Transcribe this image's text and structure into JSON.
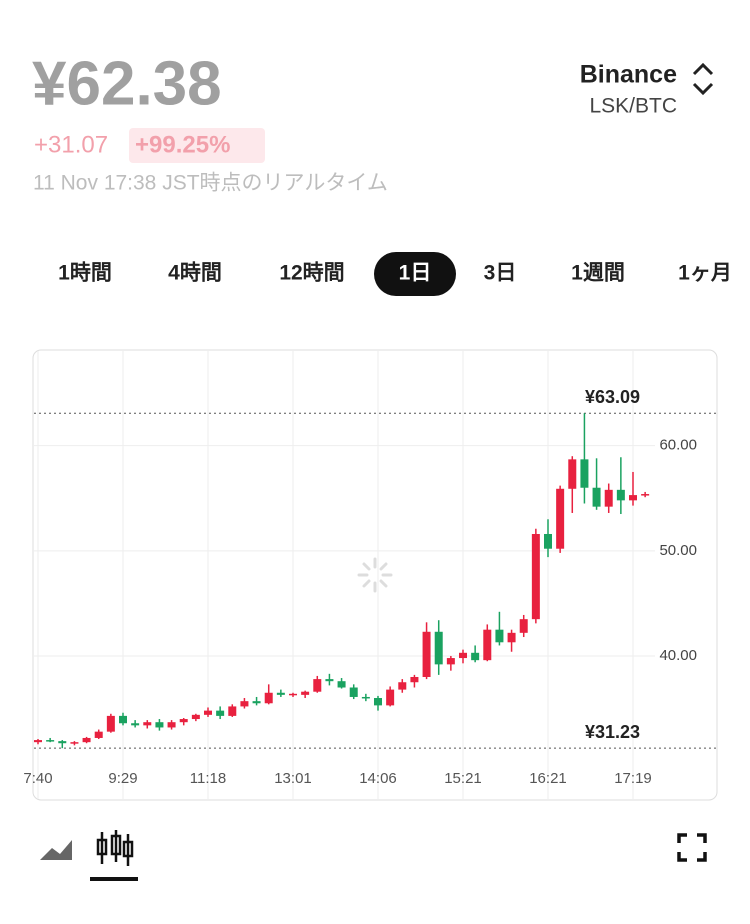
{
  "header": {
    "price": "¥62.38",
    "change": "+31.07",
    "change_pct": "+99.25%",
    "timestamp": "11 Nov 17:38 JST時点のリアルタイム",
    "exchange": "Binance",
    "pair": "LSK/BTC"
  },
  "tabs": {
    "items": [
      "1時間",
      "4時間",
      "12時間",
      "1日",
      "3日",
      "1週間",
      "1ヶ月"
    ],
    "selected": 3
  },
  "chart_data": {
    "type": "candlestick",
    "up_color": "#e8213f",
    "down_color": "#1aa260",
    "grid": true,
    "ylim": [
      26.3,
      69.1
    ],
    "yticks": [
      {
        "value": 40,
        "label": "40.00"
      },
      {
        "value": 50,
        "label": "50.00"
      },
      {
        "value": 60,
        "label": "60.00"
      }
    ],
    "categories": [
      "7:40",
      null,
      null,
      null,
      null,
      null,
      null,
      "9:29",
      null,
      null,
      null,
      null,
      null,
      null,
      "11:18",
      null,
      null,
      null,
      null,
      null,
      null,
      "13:01",
      null,
      null,
      null,
      null,
      null,
      null,
      "14:06",
      null,
      null,
      null,
      null,
      null,
      null,
      "15:21",
      null,
      null,
      null,
      null,
      null,
      null,
      "16:21",
      null,
      null,
      null,
      null,
      null,
      null,
      "17:19",
      null
    ],
    "open": [
      31.8,
      32.0,
      31.9,
      31.7,
      31.8,
      32.2,
      32.8,
      34.3,
      33.6,
      33.4,
      33.7,
      33.2,
      33.7,
      34.0,
      34.4,
      34.8,
      34.3,
      35.2,
      35.7,
      35.5,
      36.5,
      36.3,
      36.3,
      36.6,
      37.8,
      37.6,
      37.0,
      36.1,
      36.0,
      35.3,
      36.8,
      37.5,
      38.0,
      42.3,
      39.2,
      39.8,
      40.3,
      39.6,
      42.5,
      41.3,
      42.2,
      43.5,
      51.6,
      50.2,
      55.9,
      58.7,
      56.0,
      54.2,
      55.8,
      54.8,
      55.3
    ],
    "high": [
      32.1,
      32.2,
      32.0,
      31.9,
      32.3,
      33.0,
      34.5,
      34.6,
      33.9,
      33.9,
      34.0,
      33.9,
      34.1,
      34.5,
      35.1,
      35.2,
      35.4,
      36.0,
      36.1,
      37.3,
      36.8,
      36.5,
      36.7,
      38.1,
      38.3,
      37.9,
      37.3,
      36.4,
      36.2,
      37.1,
      37.8,
      38.2,
      43.2,
      43.4,
      40.0,
      40.6,
      41.0,
      43.0,
      44.2,
      42.5,
      43.9,
      52.1,
      53.0,
      56.2,
      59.0,
      63.09,
      58.8,
      56.4,
      58.9,
      57.5,
      55.6
    ],
    "low": [
      31.6,
      31.8,
      31.23,
      31.5,
      31.7,
      32.1,
      32.7,
      33.4,
      33.2,
      33.1,
      32.9,
      33.0,
      33.4,
      33.8,
      34.2,
      34.0,
      34.2,
      35.0,
      35.3,
      35.4,
      36.1,
      36.1,
      36.0,
      36.5,
      37.2,
      36.9,
      35.9,
      35.7,
      34.8,
      35.2,
      36.5,
      37.0,
      37.8,
      38.2,
      38.6,
      39.3,
      39.4,
      39.5,
      41.0,
      40.4,
      41.8,
      43.1,
      49.4,
      49.8,
      53.6,
      54.5,
      53.9,
      53.6,
      53.5,
      54.3,
      55.1
    ],
    "close": [
      32.0,
      31.9,
      31.7,
      31.8,
      32.2,
      32.8,
      34.3,
      33.6,
      33.4,
      33.7,
      33.2,
      33.7,
      34.0,
      34.4,
      34.8,
      34.3,
      35.2,
      35.7,
      35.5,
      36.5,
      36.3,
      36.4,
      36.6,
      37.8,
      37.6,
      37.0,
      36.1,
      36.0,
      35.3,
      36.8,
      37.5,
      38.0,
      42.3,
      39.2,
      39.8,
      40.3,
      39.6,
      42.5,
      41.3,
      42.2,
      43.5,
      51.6,
      50.2,
      55.9,
      58.7,
      56.0,
      54.2,
      55.8,
      54.8,
      55.3,
      55.4
    ],
    "high_marker": {
      "value": 63.09,
      "label": "¥63.09"
    },
    "low_marker": {
      "value": 31.23,
      "label": "¥31.23"
    }
  }
}
